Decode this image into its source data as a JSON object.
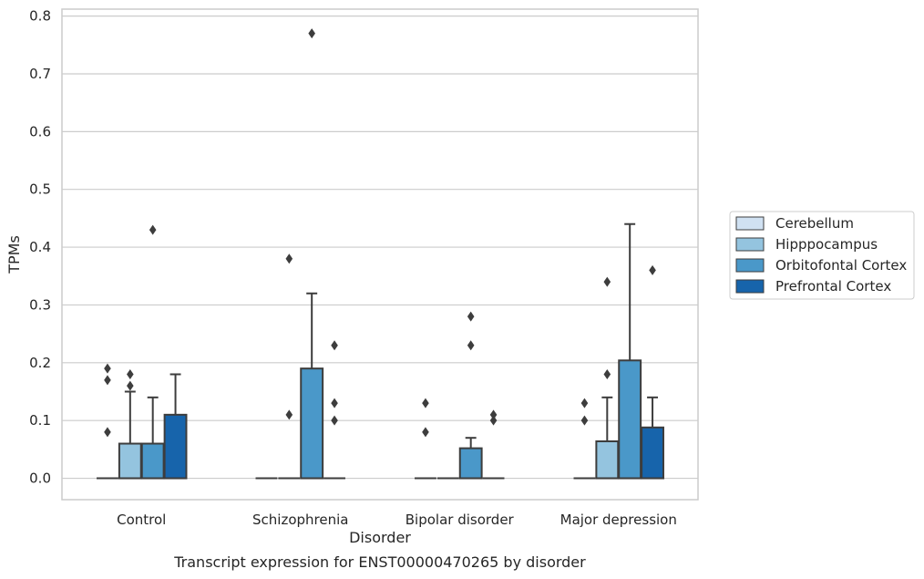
{
  "chart_data": {
    "type": "box",
    "title": "",
    "caption": "Transcript expression for ENST00000470265 by disorder",
    "xlabel": "Disorder",
    "ylabel": "TPMs",
    "ylim": [
      -0.037,
      0.812
    ],
    "yticks": [
      "0.0",
      "0.1",
      "0.2",
      "0.3",
      "0.4",
      "0.5",
      "0.6",
      "0.7",
      "0.8"
    ],
    "grid": true,
    "legend_position": "right",
    "categories": [
      "Control",
      "Schizophrenia",
      "Bipolar disorder",
      "Major depression"
    ],
    "series": [
      {
        "name": "Cerebellum",
        "color": "#d0e1f2",
        "boxes": [
          {
            "q1": 0,
            "median": 0,
            "q3": 0,
            "whislo": 0,
            "whishi": 0,
            "fliers": [
              0.08,
              0.17,
              0.19
            ]
          },
          {
            "q1": 0,
            "median": 0,
            "q3": 0,
            "whislo": 0,
            "whishi": 0,
            "fliers": []
          },
          {
            "q1": 0,
            "median": 0,
            "q3": 0,
            "whislo": 0,
            "whishi": 0,
            "fliers": [
              0.08,
              0.13
            ]
          },
          {
            "q1": 0,
            "median": 0,
            "q3": 0,
            "whislo": 0,
            "whishi": 0,
            "fliers": [
              0.1,
              0.13
            ]
          }
        ]
      },
      {
        "name": "Hipppocampus",
        "color": "#94c4df",
        "boxes": [
          {
            "q1": 0,
            "median": 0,
            "q3": 0.06,
            "whislo": 0,
            "whishi": 0.15,
            "fliers": [
              0.16,
              0.18
            ]
          },
          {
            "q1": 0,
            "median": 0,
            "q3": 0,
            "whislo": 0,
            "whishi": 0,
            "fliers": [
              0.11,
              0.38
            ]
          },
          {
            "q1": 0,
            "median": 0,
            "q3": 0,
            "whislo": 0,
            "whishi": 0,
            "fliers": []
          },
          {
            "q1": 0,
            "median": 0,
            "q3": 0.064,
            "whislo": 0,
            "whishi": 0.14,
            "fliers": [
              0.18,
              0.34
            ]
          }
        ]
      },
      {
        "name": "Orbitofontal Cortex",
        "color": "#4a98c9",
        "boxes": [
          {
            "q1": 0,
            "median": 0,
            "q3": 0.06,
            "whislo": 0,
            "whishi": 0.14,
            "fliers": [
              0.43
            ]
          },
          {
            "q1": 0,
            "median": 0,
            "q3": 0.19,
            "whislo": 0,
            "whishi": 0.32,
            "fliers": [
              0.77
            ]
          },
          {
            "q1": 0,
            "median": 0,
            "q3": 0.052,
            "whislo": 0,
            "whishi": 0.07,
            "fliers": [
              0.23,
              0.28
            ]
          },
          {
            "q1": 0,
            "median": 0,
            "q3": 0.204,
            "whislo": 0,
            "whishi": 0.44,
            "fliers": []
          }
        ]
      },
      {
        "name": "Prefrontal Cortex",
        "color": "#1764ab",
        "boxes": [
          {
            "q1": 0,
            "median": 0,
            "q3": 0.11,
            "whislo": 0,
            "whishi": 0.18,
            "fliers": []
          },
          {
            "q1": 0,
            "median": 0,
            "q3": 0,
            "whislo": 0,
            "whishi": 0,
            "fliers": [
              0.1,
              0.13,
              0.23
            ]
          },
          {
            "q1": 0,
            "median": 0,
            "q3": 0,
            "whislo": 0,
            "whishi": 0,
            "fliers": [
              0.1,
              0.11
            ]
          },
          {
            "q1": 0,
            "median": 0,
            "q3": 0.088,
            "whislo": 0,
            "whishi": 0.14,
            "fliers": [
              0.36
            ]
          }
        ]
      }
    ]
  }
}
